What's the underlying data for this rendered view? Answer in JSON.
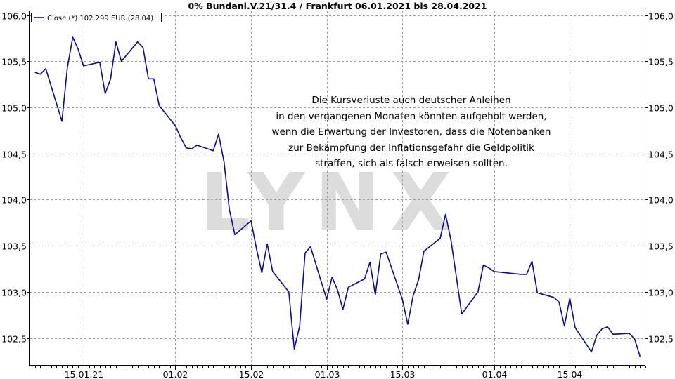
{
  "chart_data": {
    "type": "line",
    "title": "0% Bundanl.V.21/31.4 / Frankfurt 06.01.2021 bis 28.04.2021",
    "legend": {
      "label": "Close (*) 102,299 EUR (28.04)",
      "position": "top-left"
    },
    "watermark": "LYNX",
    "annotation_lines": [
      "Die Kursverluste auch deutscher Anleihen",
      "in den vergangenen Monaten könnten aufgeholt werden,",
      "wenn die Erwartung der Investoren, dass die Notenbanken",
      "zur Bekämpfung der Inflationsgefahr die Geldpolitik",
      "straffen, sich als falsch erweisen sollten."
    ],
    "ylim": [
      102.2,
      106.05
    ],
    "y_ticks": [
      {
        "value": 106.0,
        "label": "106,0"
      },
      {
        "value": 105.5,
        "label": "105,5"
      },
      {
        "value": 105.0,
        "label": "105,0"
      },
      {
        "value": 104.5,
        "label": "104,5"
      },
      {
        "value": 104.0,
        "label": "104,0"
      },
      {
        "value": 103.5,
        "label": "103,5"
      },
      {
        "value": 103.0,
        "label": "103,0"
      },
      {
        "value": 102.5,
        "label": "102,5"
      }
    ],
    "xlim": [
      "2021-01-05",
      "2021-04-29"
    ],
    "x_ticks": [
      {
        "date": "2021-01-15",
        "label": "15.01.21"
      },
      {
        "date": "2021-02-01",
        "label": "01.02"
      },
      {
        "date": "2021-02-15",
        "label": "15.02"
      },
      {
        "date": "2021-03-01",
        "label": "01.03"
      },
      {
        "date": "2021-03-15",
        "label": "15.03"
      },
      {
        "date": "2021-04-01",
        "label": "01.04"
      },
      {
        "date": "2021-04-15",
        "label": "15.04"
      }
    ],
    "grid": true,
    "colors": {
      "line": "#0b0b8c",
      "grid": "#9a9a9a",
      "watermark": "#dcdcdc"
    },
    "series": [
      {
        "name": "Close (*) 102,299 EUR (28.04)",
        "points": [
          [
            "2021-01-06",
            105.38
          ],
          [
            "2021-01-07",
            105.36
          ],
          [
            "2021-01-08",
            105.42
          ],
          [
            "2021-01-11",
            104.85
          ],
          [
            "2021-01-12",
            105.43
          ],
          [
            "2021-01-13",
            105.76
          ],
          [
            "2021-01-14",
            105.63
          ],
          [
            "2021-01-15",
            105.45
          ],
          [
            "2021-01-18",
            105.49
          ],
          [
            "2021-01-19",
            105.15
          ],
          [
            "2021-01-20",
            105.31
          ],
          [
            "2021-01-21",
            105.71
          ],
          [
            "2021-01-22",
            105.5
          ],
          [
            "2021-01-25",
            105.71
          ],
          [
            "2021-01-26",
            105.65
          ],
          [
            "2021-01-27",
            105.31
          ],
          [
            "2021-01-28",
            105.31
          ],
          [
            "2021-01-29",
            105.02
          ],
          [
            "2021-02-01",
            104.8
          ],
          [
            "2021-02-02",
            104.67
          ],
          [
            "2021-02-03",
            104.56
          ],
          [
            "2021-02-04",
            104.55
          ],
          [
            "2021-02-05",
            104.59
          ],
          [
            "2021-02-08",
            104.53
          ],
          [
            "2021-02-09",
            104.71
          ],
          [
            "2021-02-10",
            104.41
          ],
          [
            "2021-02-11",
            103.89
          ],
          [
            "2021-02-12",
            103.62
          ],
          [
            "2021-02-15",
            103.77
          ],
          [
            "2021-02-16",
            103.47
          ],
          [
            "2021-02-17",
            103.21
          ],
          [
            "2021-02-18",
            103.52
          ],
          [
            "2021-02-19",
            103.22
          ],
          [
            "2021-02-22",
            103.0
          ],
          [
            "2021-02-23",
            102.38
          ],
          [
            "2021-02-24",
            102.63
          ],
          [
            "2021-02-25",
            103.42
          ],
          [
            "2021-02-26",
            103.49
          ],
          [
            "2021-03-01",
            102.92
          ],
          [
            "2021-03-02",
            103.16
          ],
          [
            "2021-03-03",
            103.02
          ],
          [
            "2021-03-04",
            102.81
          ],
          [
            "2021-03-05",
            103.05
          ],
          [
            "2021-03-08",
            103.14
          ],
          [
            "2021-03-09",
            103.32
          ],
          [
            "2021-03-10",
            102.97
          ],
          [
            "2021-03-11",
            103.41
          ],
          [
            "2021-03-12",
            103.43
          ],
          [
            "2021-03-15",
            102.92
          ],
          [
            "2021-03-16",
            102.65
          ],
          [
            "2021-03-17",
            102.96
          ],
          [
            "2021-03-18",
            103.13
          ],
          [
            "2021-03-19",
            103.44
          ],
          [
            "2021-03-22",
            103.58
          ],
          [
            "2021-03-23",
            103.84
          ],
          [
            "2021-03-24",
            103.56
          ],
          [
            "2021-03-25",
            103.16
          ],
          [
            "2021-03-26",
            102.76
          ],
          [
            "2021-03-29",
            103.0
          ],
          [
            "2021-03-30",
            103.29
          ],
          [
            "2021-03-31",
            103.26
          ],
          [
            "2021-04-01",
            103.22
          ],
          [
            "2021-04-06",
            103.19
          ],
          [
            "2021-04-07",
            103.19
          ],
          [
            "2021-04-08",
            103.33
          ],
          [
            "2021-04-09",
            102.99
          ],
          [
            "2021-04-12",
            102.94
          ],
          [
            "2021-04-13",
            102.89
          ],
          [
            "2021-04-14",
            102.63
          ],
          [
            "2021-04-15",
            102.93
          ],
          [
            "2021-04-16",
            102.61
          ],
          [
            "2021-04-19",
            102.35
          ],
          [
            "2021-04-20",
            102.53
          ],
          [
            "2021-04-21",
            102.6
          ],
          [
            "2021-04-22",
            102.62
          ],
          [
            "2021-04-23",
            102.54
          ],
          [
            "2021-04-26",
            102.55
          ],
          [
            "2021-04-27",
            102.49
          ],
          [
            "2021-04-28",
            102.3
          ]
        ]
      }
    ]
  }
}
